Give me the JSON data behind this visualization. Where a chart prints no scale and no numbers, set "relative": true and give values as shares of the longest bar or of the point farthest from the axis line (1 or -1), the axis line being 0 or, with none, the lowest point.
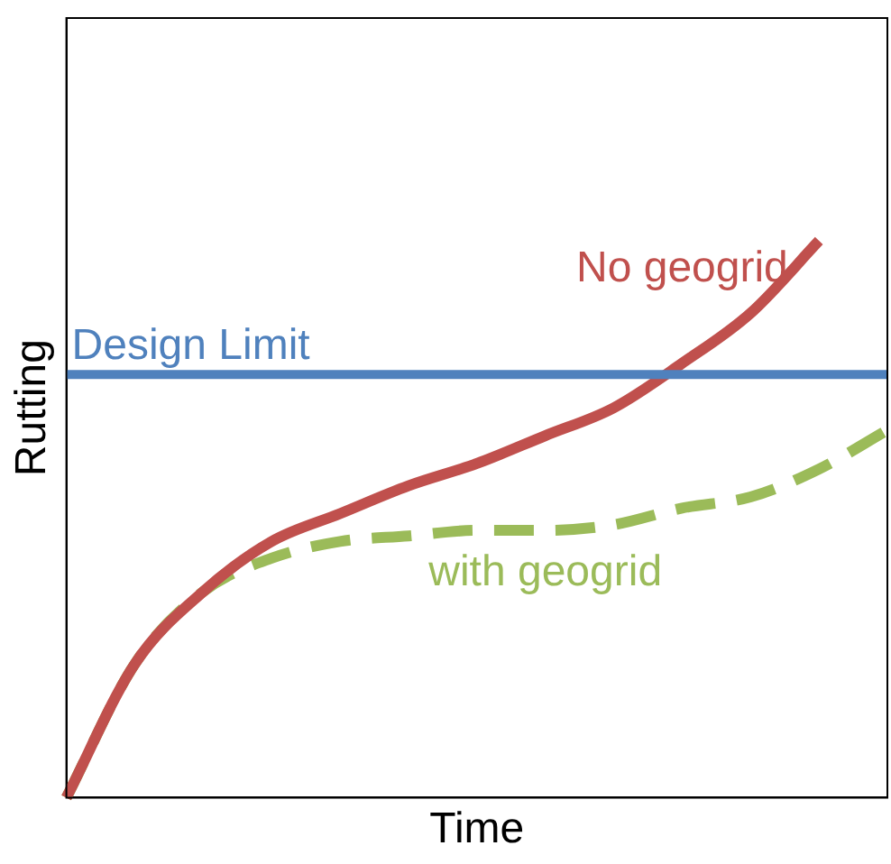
{
  "chart_data": {
    "type": "line",
    "relative": true,
    "xlabel": "Time",
    "ylabel": "Rutting",
    "categories": [
      null,
      null,
      null,
      null,
      null,
      null,
      null,
      null,
      null,
      null,
      null,
      null,
      null
    ],
    "series": [
      {
        "name": "No geogrid",
        "color": "#c0504d",
        "line_style": "solid",
        "values": [
          0,
          0.24,
          0.37,
          0.46,
          0.51,
          0.56,
          0.6,
          0.65,
          0.7,
          0.78,
          0.87,
          1.0,
          null
        ]
      },
      {
        "name": "with geogrid",
        "color": "#9bbb59",
        "line_style": "dashed",
        "values": [
          0,
          0.24,
          0.37,
          0.43,
          0.46,
          0.47,
          0.48,
          0.48,
          0.49,
          0.52,
          0.54,
          0.59,
          0.66
        ]
      }
    ],
    "ref_lines": [
      {
        "axis": "y",
        "value": 0.76,
        "label": "Design Limit",
        "color": "#4f81bd"
      }
    ],
    "grid": false,
    "legend": false,
    "marker": "none"
  }
}
